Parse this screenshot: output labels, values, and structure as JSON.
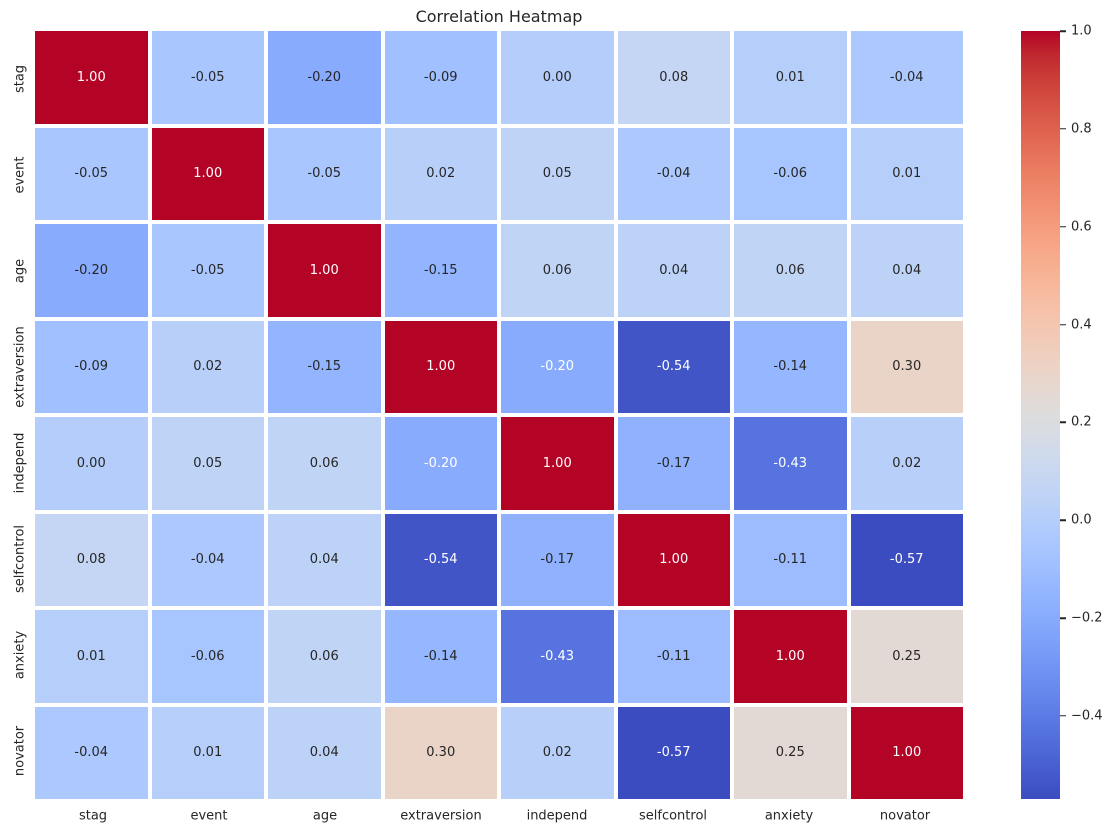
{
  "figure": {
    "background": "#ffffff"
  },
  "chart_data": {
    "type": "heatmap",
    "title": "Correlation Heatmap",
    "categories": [
      "stag",
      "event",
      "age",
      "extraversion",
      "independ",
      "selfcontrol",
      "anxiety",
      "novator"
    ],
    "matrix": [
      [
        1.0,
        -0.05,
        -0.2,
        -0.09,
        0.0,
        0.08,
        0.01,
        -0.04
      ],
      [
        -0.05,
        1.0,
        -0.05,
        0.02,
        0.05,
        -0.04,
        -0.06,
        0.01
      ],
      [
        -0.2,
        -0.05,
        1.0,
        -0.15,
        0.06,
        0.04,
        0.06,
        0.04
      ],
      [
        -0.09,
        0.02,
        -0.15,
        1.0,
        -0.2,
        -0.54,
        -0.14,
        0.3
      ],
      [
        0.0,
        0.05,
        0.06,
        -0.2,
        1.0,
        -0.17,
        -0.43,
        0.02
      ],
      [
        0.08,
        -0.04,
        0.04,
        -0.54,
        -0.17,
        1.0,
        -0.11,
        -0.57
      ],
      [
        0.01,
        -0.06,
        0.06,
        -0.14,
        -0.43,
        -0.11,
        1.0,
        0.25
      ],
      [
        -0.04,
        0.01,
        0.04,
        0.3,
        0.02,
        -0.57,
        0.25,
        1.0
      ]
    ],
    "value_decimals": 2,
    "vmin": -0.57,
    "vmax": 1.0,
    "colormap": "coolwarm",
    "colormap_stops": [
      "#3b4cc0",
      "#445acc",
      "#4d68d7",
      "#5775e1",
      "#6282ea",
      "#6c8ef1",
      "#779af7",
      "#82a5fb",
      "#8db0fe",
      "#98b9ff",
      "#a3c2ff",
      "#aec9fd",
      "#b8d0f9",
      "#c2d5f4",
      "#ccd9ee",
      "#d5dbe6",
      "#dddddd",
      "#e5d8d1",
      "#ecd3c5",
      "#f1ccb9",
      "#f5c4ad",
      "#f7bba0",
      "#f7b194",
      "#f7a687",
      "#f49a7b",
      "#f18d6f",
      "#ec7f63",
      "#e57058",
      "#de604d",
      "#d55042",
      "#cb3e38",
      "#c0282f",
      "#b40426"
    ],
    "colorbar_ticks": [
      {
        "label": "1.0",
        "value": 1.0
      },
      {
        "label": "0.8",
        "value": 0.8
      },
      {
        "label": "0.6",
        "value": 0.6
      },
      {
        "label": "0.4",
        "value": 0.4
      },
      {
        "label": "0.2",
        "value": 0.2
      },
      {
        "label": "0.0",
        "value": 0.0
      },
      {
        "label": "−0.2",
        "value": -0.2
      },
      {
        "label": "−0.4",
        "value": -0.4
      }
    ],
    "white_text_cells": [
      [
        0,
        0
      ],
      [
        1,
        1
      ],
      [
        2,
        2
      ],
      [
        3,
        3
      ],
      [
        4,
        4
      ],
      [
        5,
        5
      ],
      [
        6,
        6
      ],
      [
        7,
        7
      ],
      [
        3,
        4
      ],
      [
        4,
        3
      ],
      [
        3,
        5
      ],
      [
        5,
        3
      ],
      [
        4,
        6
      ],
      [
        6,
        4
      ],
      [
        5,
        7
      ],
      [
        7,
        5
      ]
    ],
    "colors": {
      "annotation_dark": "#262626",
      "annotation_light": "#ffffff",
      "grid_line": "#ffffff",
      "tick_text": "#262626",
      "title_text": "#262626"
    },
    "layout_hints": {
      "legend_position": "right-colorbar",
      "grid": "white-cell-separators"
    }
  }
}
